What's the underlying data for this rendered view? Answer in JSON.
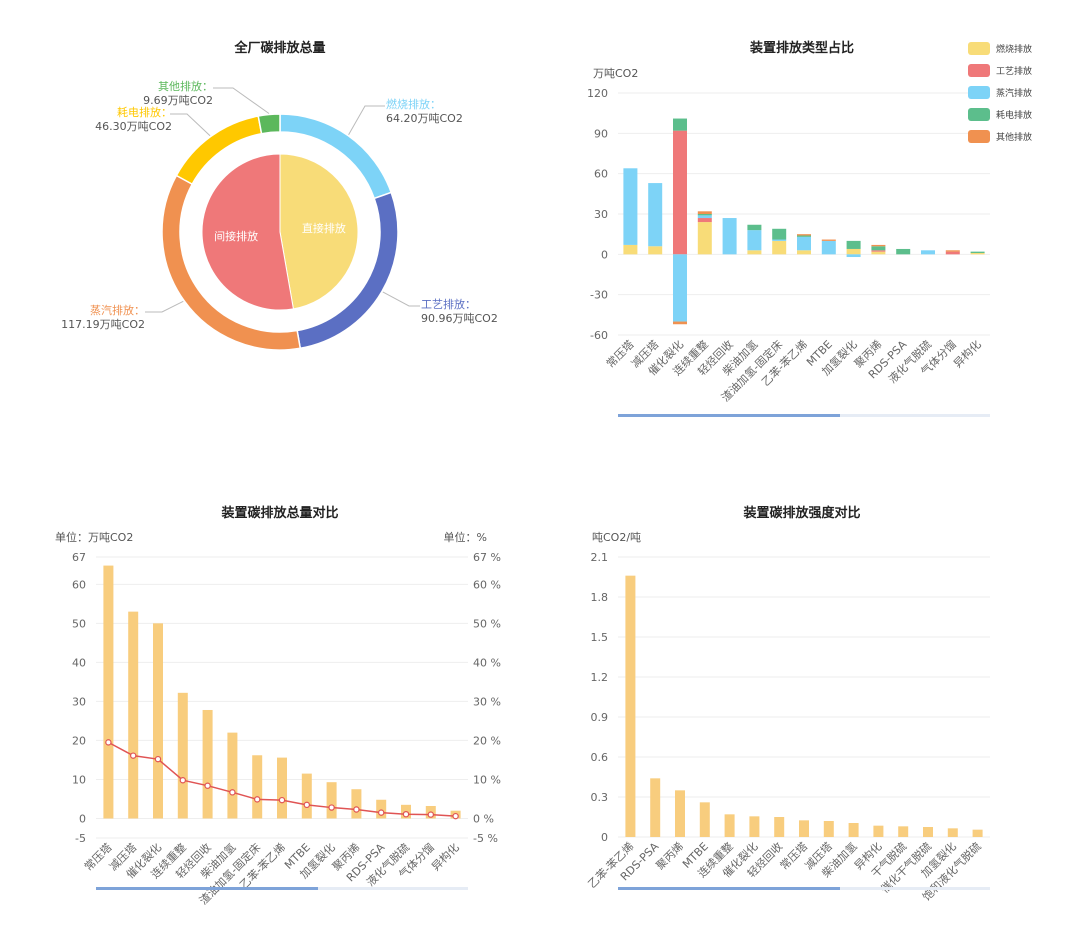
{
  "chart_data": [
    {
      "type": "pie",
      "title": "全厂碳排放总量",
      "outer": {
        "slices": [
          {
            "name": "燃烧排放",
            "label": "燃烧排放：",
            "value_label": "64.20万吨CO2",
            "value": 64.2,
            "color": "#7dd3f7"
          },
          {
            "name": "工艺排放",
            "label": "工艺排放：",
            "value_label": "90.96万吨CO2",
            "value": 90.96,
            "color": "#5b6fc3"
          },
          {
            "name": "蒸汽排放",
            "label": "蒸汽排放：",
            "value_label": "117.19万吨CO2",
            "value": 117.19,
            "color": "#f09150"
          },
          {
            "name": "耗电排放",
            "label": "耗电排放：",
            "value_label": "46.30万吨CO2",
            "value": 46.3,
            "color": "#ffc800"
          },
          {
            "name": "其他排放",
            "label": "其他排放：",
            "value_label": "9.69万吨CO2",
            "value": 9.69,
            "color": "#5cb85c"
          }
        ]
      },
      "inner": {
        "slices": [
          {
            "name": "直接排放",
            "value": 155.16,
            "color": "#f8dc78"
          },
          {
            "name": "间接排放",
            "value": 173.18,
            "color": "#ef7879"
          }
        ]
      }
    },
    {
      "type": "bar",
      "stacked": true,
      "title": "装置排放类型占比",
      "yunit": "万吨CO2",
      "ylim": [
        -60,
        120
      ],
      "yticks": [
        -60,
        -30,
        0,
        30,
        60,
        90,
        120
      ],
      "categories": [
        "常压塔",
        "减压塔",
        "催化裂化",
        "连续重整",
        "轻烃回收",
        "柴油加氢",
        "渣油加氢-固定床",
        "乙苯-苯乙烯",
        "MTBE",
        "加氢裂化",
        "聚丙烯",
        "RDS-PSA",
        "液化气脱硫",
        "气体分馏",
        "异构化"
      ],
      "series": [
        {
          "name": "燃烧排放",
          "color": "#f8dc78",
          "values": [
            7,
            6,
            0,
            24,
            0,
            3,
            10,
            3,
            0,
            4,
            2,
            0,
            0,
            0,
            1
          ]
        },
        {
          "name": "工艺排放",
          "color": "#ef7879",
          "values": [
            0,
            0,
            92,
            3,
            0,
            0,
            0,
            0,
            0,
            0,
            1,
            0,
            0,
            2,
            0
          ]
        },
        {
          "name": "蒸汽排放",
          "color": "#7dd3f7",
          "values": [
            57,
            47,
            -50,
            2,
            27,
            15,
            1,
            10,
            10,
            -2,
            0,
            0,
            3,
            0,
            0
          ]
        },
        {
          "name": "耗电排放",
          "color": "#5cbe8c",
          "values": [
            0,
            0,
            9,
            1,
            0,
            4,
            8,
            1,
            0,
            6,
            3,
            4,
            0,
            0,
            1
          ]
        },
        {
          "name": "其他排放",
          "color": "#f09150",
          "values": [
            0,
            0,
            -2,
            2,
            0,
            0,
            0,
            1,
            1,
            0,
            1,
            0,
            0,
            1,
            0
          ]
        }
      ],
      "legend": "top-right"
    },
    {
      "type": "bar",
      "title": "装置碳排放总量对比",
      "yunit_left": "单位：万吨CO2",
      "yunit_right": "单位：%",
      "ylim": [
        -5,
        67
      ],
      "yticks_left": [
        "-5",
        "0",
        "10",
        "20",
        "30",
        "40",
        "50",
        "60",
        "67"
      ],
      "yticks_right": [
        "-5 %",
        "0 %",
        "10 %",
        "20 %",
        "30 %",
        "40 %",
        "50 %",
        "60 %",
        "67 %"
      ],
      "categories": [
        "常压塔",
        "减压塔",
        "催化裂化",
        "连续重整",
        "轻烃回收",
        "柴油加氢",
        "渣油加氢-固定床",
        "乙苯-苯乙烯",
        "MTBE",
        "加氢裂化",
        "聚丙烯",
        "RDS-PSA",
        "液化气脱硫",
        "气体分馏",
        "异构化"
      ],
      "series": [
        {
          "type": "bar",
          "color": "#f8cd7e",
          "values": [
            64.8,
            53,
            50,
            32.2,
            27.8,
            22,
            16.2,
            15.6,
            11.5,
            9.3,
            7.5,
            4.8,
            3.5,
            3.2,
            2.0
          ]
        },
        {
          "type": "line",
          "color": "#e05454",
          "values": [
            19.5,
            16.1,
            15.2,
            9.8,
            8.4,
            6.7,
            4.9,
            4.7,
            3.5,
            2.8,
            2.3,
            1.5,
            1.1,
            1.0,
            0.6
          ]
        }
      ]
    },
    {
      "type": "bar",
      "title": "装置碳排放强度对比",
      "yunit": "吨CO2/吨",
      "ylim": [
        0,
        2.1
      ],
      "yticks": [
        "0",
        "0.3",
        "0.6",
        "0.9",
        "1.2",
        "1.5",
        "1.8",
        "2.1"
      ],
      "categories": [
        "乙苯-苯乙烯",
        "RDS-PSA",
        "聚丙烯",
        "MTBE",
        "连续重整",
        "催化裂化",
        "轻烃回收",
        "常压塔",
        "减压塔",
        "柴油加氢",
        "异构化",
        "干气脱硫",
        "催化干气脱硫",
        "加氢裂化",
        "饱和液化气脱硫"
      ],
      "series": [
        {
          "color": "#f8cd7e",
          "values": [
            1.96,
            0.44,
            0.35,
            0.26,
            0.17,
            0.155,
            0.15,
            0.125,
            0.12,
            0.105,
            0.085,
            0.08,
            0.075,
            0.065,
            0.055
          ]
        }
      ]
    }
  ]
}
